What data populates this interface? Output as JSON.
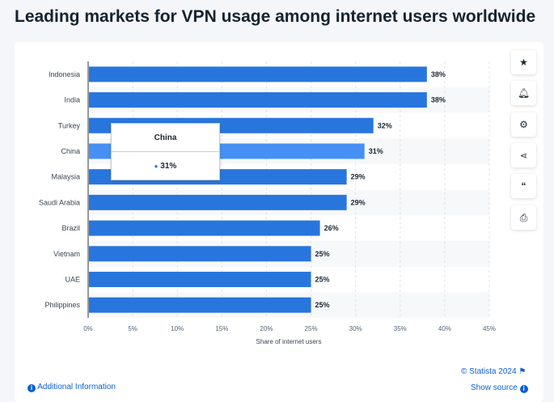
{
  "title": "Leading markets for VPN usage among internet users worldwide",
  "chart_data": {
    "type": "bar",
    "orientation": "horizontal",
    "categories": [
      "Indonesia",
      "India",
      "Turkey",
      "China",
      "Malaysia",
      "Saudi Arabia",
      "Brazil",
      "Vietnam",
      "UAE",
      "Philippines"
    ],
    "values": [
      38,
      38,
      32,
      31,
      29,
      29,
      26,
      25,
      25,
      25
    ],
    "value_suffix": "%",
    "xlabel": "Share of internet users",
    "xlim": [
      0,
      45
    ],
    "xticks": [
      "0%",
      "5%",
      "10%",
      "15%",
      "20%",
      "25%",
      "30%",
      "35%",
      "40%",
      "45%"
    ],
    "grid": true,
    "bar_color": "#2876dd",
    "highlight_color": "#4590f2",
    "highlighted": "China"
  },
  "tooltip": {
    "title": "China",
    "value": "31%"
  },
  "side_buttons": [
    "star-icon",
    "bell-icon",
    "gear-icon",
    "share-icon",
    "quote-icon",
    "print-icon"
  ],
  "footer": {
    "copyright": "© Statista 2024",
    "additional": "Additional Information",
    "source": "Show source"
  }
}
